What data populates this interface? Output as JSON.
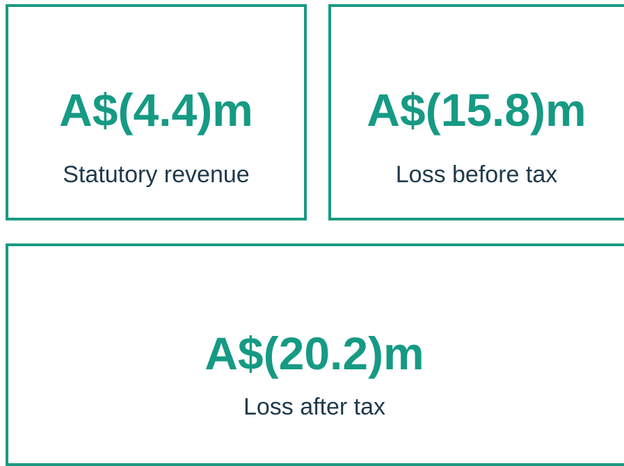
{
  "cards": [
    {
      "value": "A$(4.4)m",
      "label": "Statutory revenue"
    },
    {
      "value": "A$(15.8)m",
      "label": "Loss before tax"
    },
    {
      "value": "A$(20.2)m",
      "label": "Loss after tax"
    }
  ]
}
